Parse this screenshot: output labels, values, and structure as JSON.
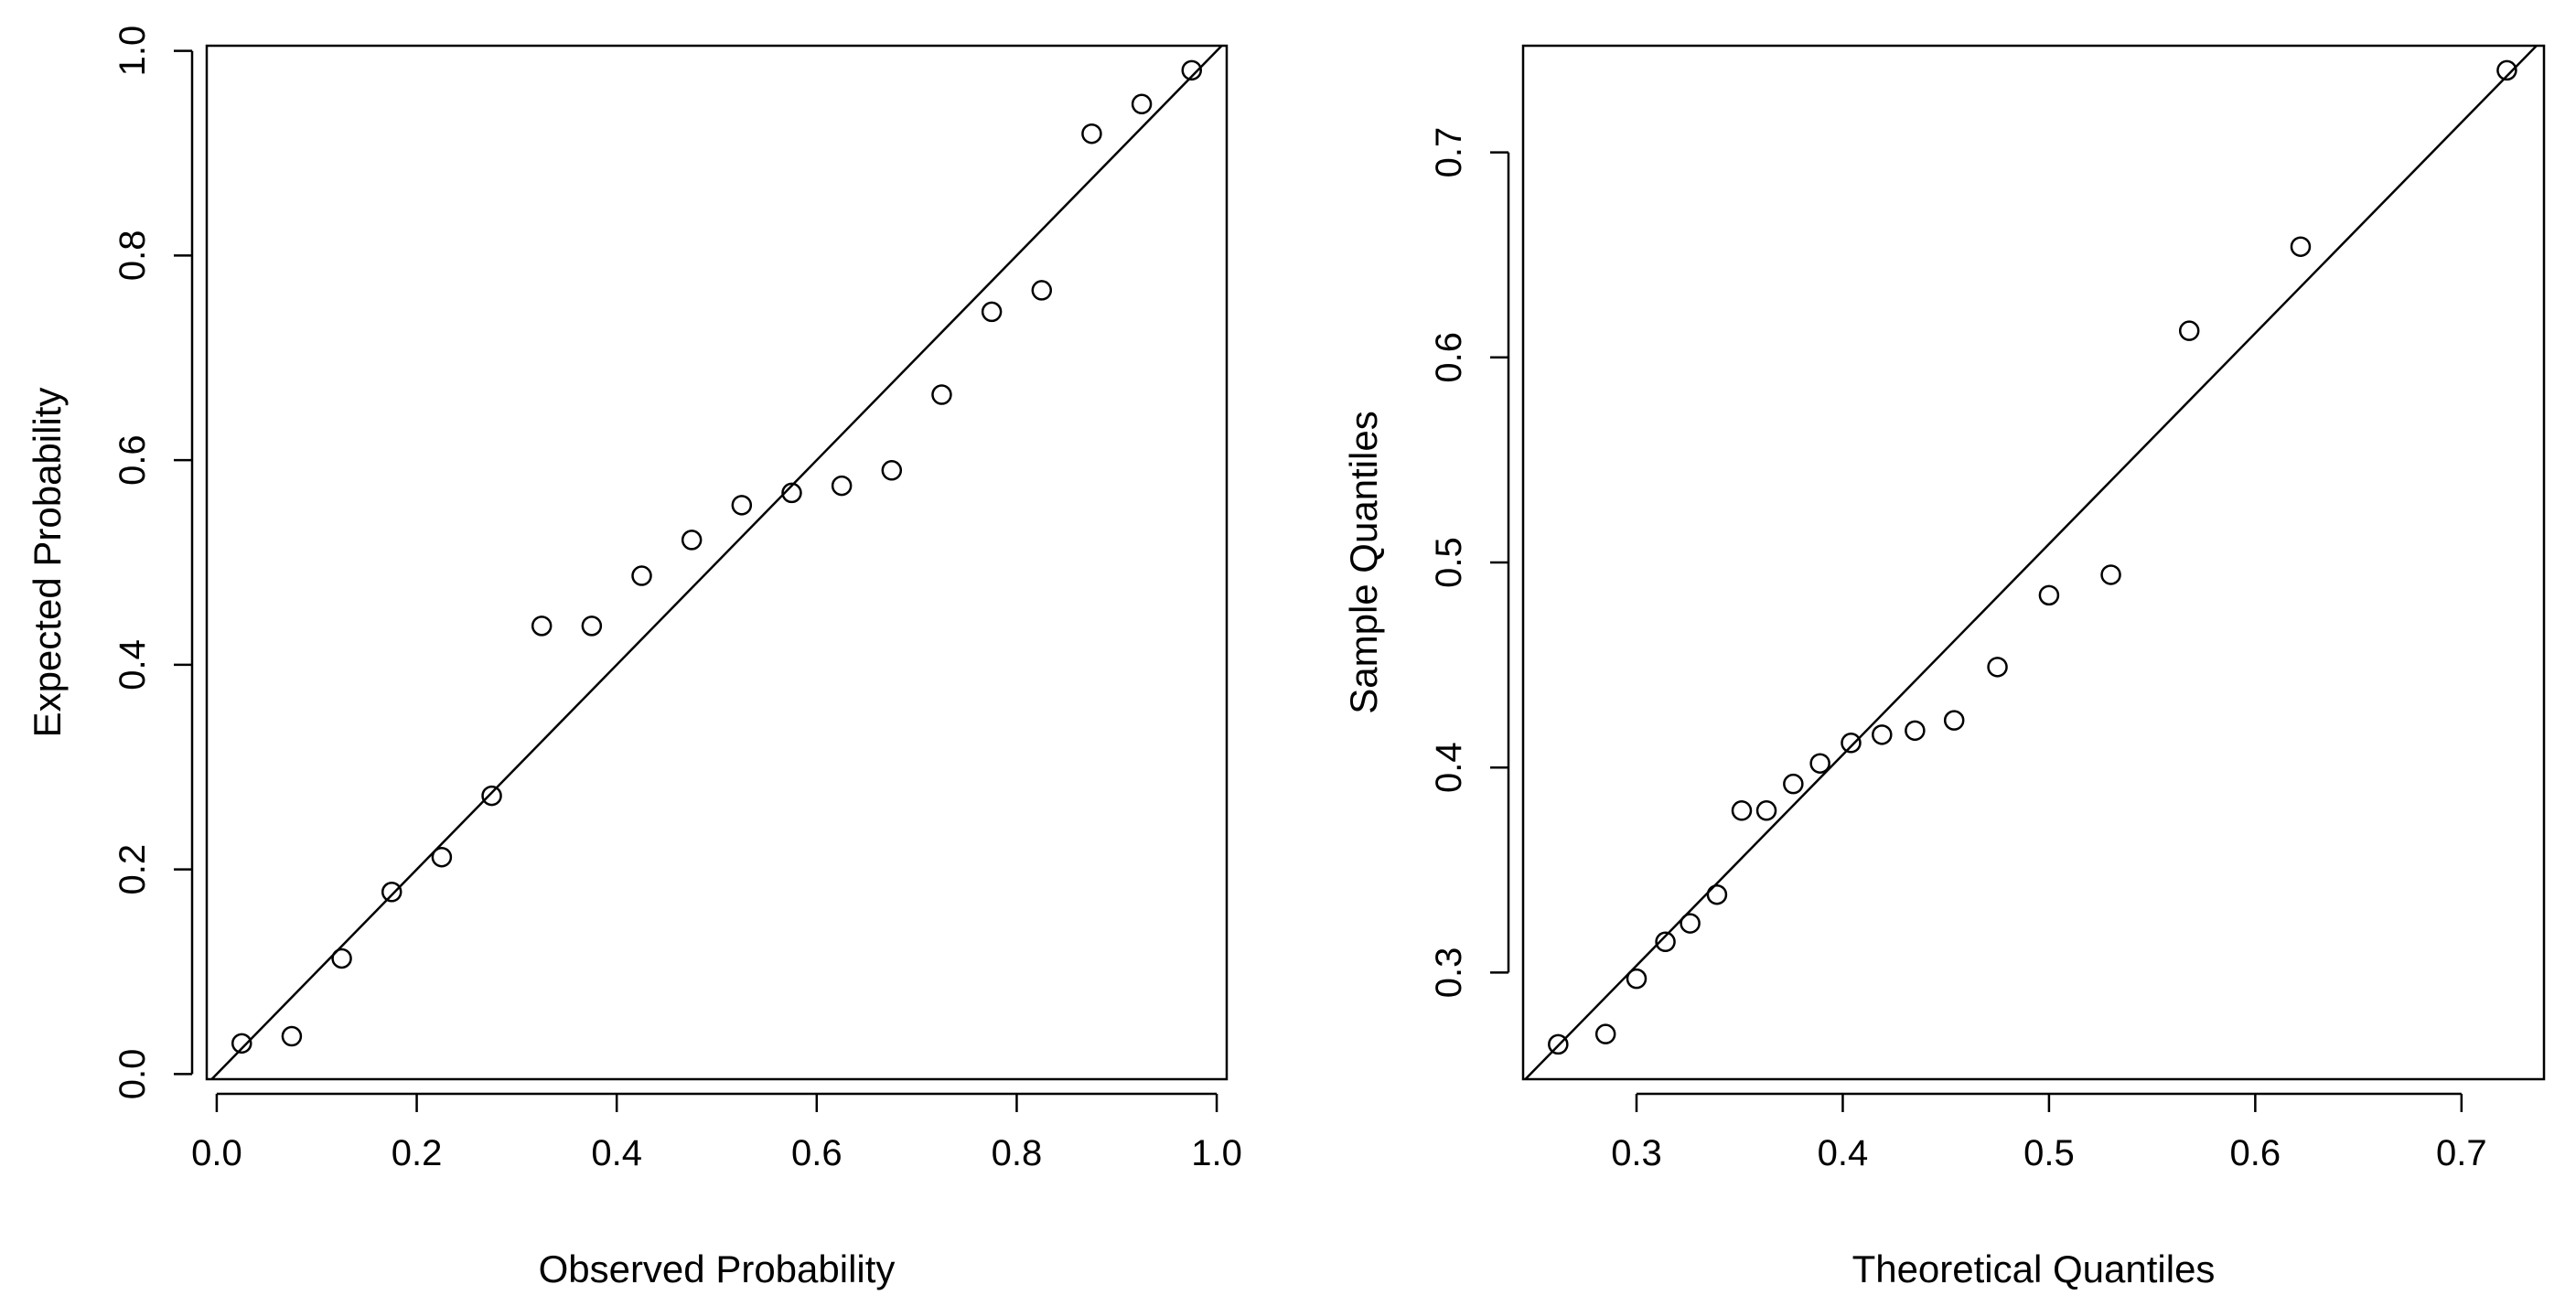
{
  "chart_data": [
    {
      "type": "scatter",
      "title": "",
      "xlabel": "Observed Probability",
      "ylabel": "Expected Probability",
      "xlim": [
        -0.01,
        1.01
      ],
      "ylim": [
        -0.005,
        1.005
      ],
      "xticks": [
        0.0,
        0.2,
        0.4,
        0.6,
        0.8,
        1.0
      ],
      "xtick_labels": [
        "0.0",
        "0.2",
        "0.4",
        "0.6",
        "0.8",
        "1.0"
      ],
      "yticks": [
        0.0,
        0.2,
        0.4,
        0.6,
        0.8,
        1.0
      ],
      "ytick_labels": [
        "0.0",
        "0.2",
        "0.4",
        "0.6",
        "0.8",
        "1.0"
      ],
      "reference_line": {
        "intercept": 0,
        "slope": 1
      },
      "x": [
        0.025,
        0.075,
        0.125,
        0.175,
        0.225,
        0.275,
        0.325,
        0.375,
        0.425,
        0.475,
        0.525,
        0.575,
        0.625,
        0.675,
        0.725,
        0.775,
        0.825,
        0.875,
        0.925,
        0.975
      ],
      "y": [
        0.03,
        0.037,
        0.113,
        0.178,
        0.212,
        0.272,
        0.438,
        0.438,
        0.487,
        0.522,
        0.556,
        0.568,
        0.575,
        0.59,
        0.664,
        0.745,
        0.766,
        0.919,
        0.948,
        0.981
      ],
      "grid": false,
      "legend": "none"
    },
    {
      "type": "scatter",
      "title": "",
      "xlabel": "Theoretical Quantiles",
      "ylabel": "Sample Quantiles",
      "xlim": [
        0.245,
        0.74
      ],
      "ylim": [
        0.248,
        0.752
      ],
      "xticks": [
        0.3,
        0.4,
        0.5,
        0.6,
        0.7
      ],
      "xtick_labels": [
        "0.3",
        "0.4",
        "0.5",
        "0.6",
        "0.7"
      ],
      "yticks": [
        0.3,
        0.4,
        0.5,
        0.6,
        0.7
      ],
      "ytick_labels": [
        "0.3",
        "0.4",
        "0.5",
        "0.6",
        "0.7"
      ],
      "reference_line": {
        "intercept": -0.005,
        "slope": 1.028
      },
      "x": [
        0.262,
        0.285,
        0.3,
        0.314,
        0.326,
        0.339,
        0.351,
        0.363,
        0.376,
        0.389,
        0.404,
        0.419,
        0.435,
        0.454,
        0.475,
        0.5,
        0.53,
        0.568,
        0.622,
        0.722
      ],
      "y": [
        0.265,
        0.27,
        0.297,
        0.315,
        0.324,
        0.338,
        0.379,
        0.379,
        0.392,
        0.402,
        0.412,
        0.416,
        0.418,
        0.423,
        0.449,
        0.484,
        0.494,
        0.613,
        0.654,
        0.74
      ],
      "grid": false,
      "legend": "none"
    }
  ]
}
